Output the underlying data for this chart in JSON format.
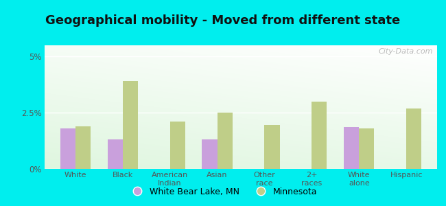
{
  "title": "Geographical mobility - Moved from different state",
  "categories": [
    "White",
    "Black",
    "American\nIndian",
    "Asian",
    "Other\nrace",
    "2+\nraces",
    "White\nalone",
    "Hispanic"
  ],
  "city_values": [
    1.8,
    1.3,
    0.0,
    1.3,
    0.0,
    0.0,
    1.85,
    0.0
  ],
  "state_values": [
    1.9,
    3.9,
    2.1,
    2.5,
    1.95,
    3.0,
    1.8,
    2.7
  ],
  "city_color": "#c9a0dc",
  "state_color": "#bfce88",
  "background_outer": "#00eeee",
  "ylim": [
    0,
    5.5
  ],
  "yticks": [
    0,
    2.5,
    5
  ],
  "ytick_labels": [
    "0%",
    "2.5%",
    "5%"
  ],
  "watermark": "City-Data.com",
  "legend_city": "White Bear Lake, MN",
  "legend_state": "Minnesota",
  "bar_width": 0.32,
  "title_fontsize": 13
}
